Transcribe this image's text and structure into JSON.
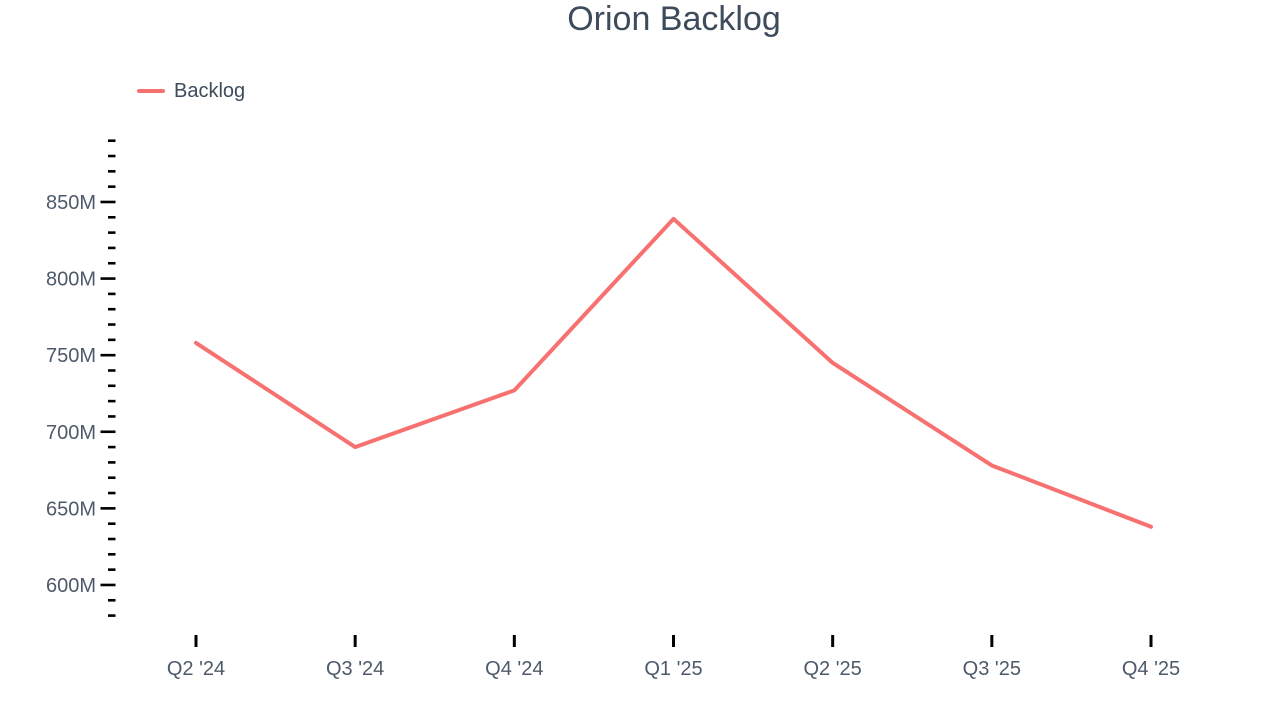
{
  "colors": {
    "background": "#ffffff",
    "series_line": "#f87171",
    "title_text": "#3d4b5b",
    "legend_text": "#3d4b5b",
    "axis_label_text": "#4e5a6a",
    "tick_mark": "#000000"
  },
  "chart_data": {
    "type": "line",
    "title": "Orion Backlog",
    "xlabel": "",
    "ylabel": "",
    "value_unit": "millions",
    "categories": [
      "Q2 '24",
      "Q3 '24",
      "Q4 '24",
      "Q1 '25",
      "Q2 '25",
      "Q3 '25",
      "Q4 '25"
    ],
    "series": [
      {
        "name": "Backlog",
        "color": "#f87171",
        "values": [
          758,
          690,
          727,
          839,
          745,
          678,
          638
        ]
      }
    ],
    "y_axis": {
      "min": 580,
      "max": 890,
      "minor_tick_step": 10,
      "major_ticks": [
        600,
        650,
        700,
        750,
        800,
        850
      ],
      "major_tick_labels": [
        "600M",
        "650M",
        "700M",
        "750M",
        "800M",
        "850M"
      ]
    },
    "x_axis": {
      "tick_labels": [
        "Q2 '24",
        "Q3 '24",
        "Q4 '24",
        "Q1 '25",
        "Q2 '25",
        "Q3 '25",
        "Q4 '25"
      ]
    },
    "legend": {
      "position": "top-left",
      "entries": [
        {
          "label": "Backlog",
          "color": "#f87171"
        }
      ]
    },
    "grid": false
  }
}
